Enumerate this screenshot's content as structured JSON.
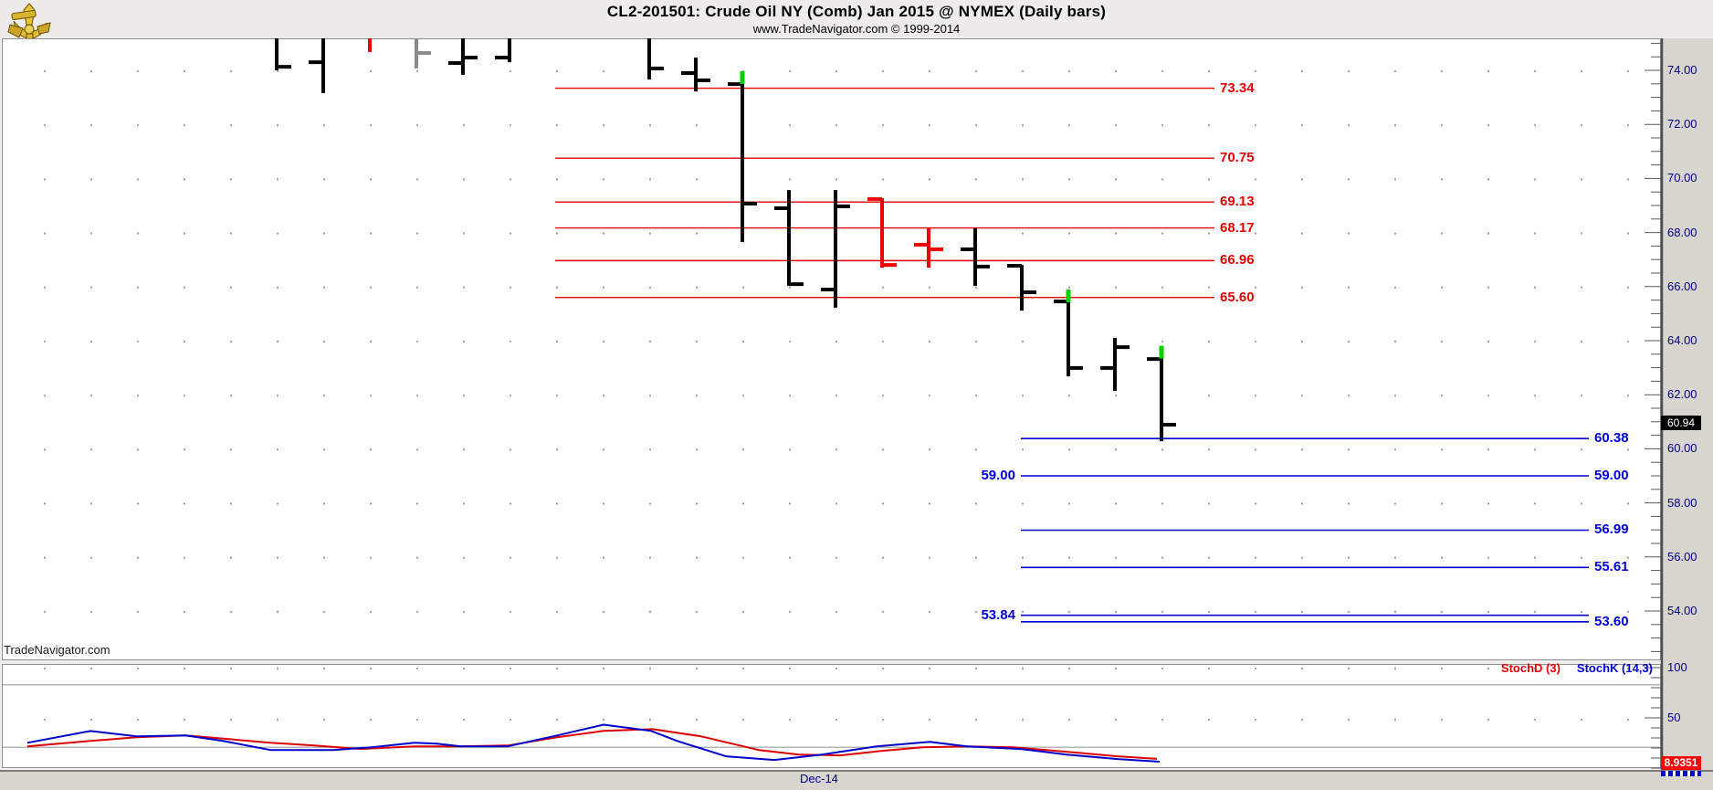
{
  "header": {
    "title": "CL2-201501:  Crude Oil NY (Comb) Jan 2015 @ NYMEX  (Daily bars)",
    "subtitle": "www.TradeNavigator.com © 1999-2014"
  },
  "watermark": "TradeNavigator.com",
  "logo_name": "tradenavigator-sextant-logo",
  "colors": {
    "bar_black": "#000000",
    "bar_red": "#ee0000",
    "bar_gray": "#8a8a8a",
    "marker_green": "#00cf00",
    "level_red": "#e60000",
    "level_blue": "#0000d0",
    "axis_text": "#00008b",
    "stoch_k": "#0000cc",
    "stoch_d": "#dd0000",
    "guide_gray": "#9b9b9b"
  },
  "chart_data": {
    "type": "bar",
    "subtype": "ohlc-daily-bars",
    "symbol": "CL2-201501",
    "title": "Crude Oil NY (Comb) Jan 2015 @ NYMEX (Daily bars)",
    "price_axis": {
      "major_ticks": [
        74,
        72,
        70,
        68,
        66,
        64,
        62,
        60,
        58,
        56,
        54
      ],
      "minor_step": 0.5,
      "current_price": "60.94"
    },
    "date_axis": {
      "labels": [
        {
          "text": "Dec-14"
        }
      ]
    },
    "bars": [
      {
        "slot": 5,
        "high": 75.2,
        "low": 74.0,
        "close_tick": 74.13,
        "color": "black",
        "clipped": true
      },
      {
        "slot": 6,
        "high": 75.2,
        "low": 73.16,
        "open_tick": 74.3,
        "color": "black",
        "clipped": true
      },
      {
        "slot": 7,
        "high": 75.2,
        "low": 74.68,
        "color": "red",
        "clipped": true
      },
      {
        "slot": 8,
        "high": 75.2,
        "low": 74.07,
        "close_tick": 74.64,
        "color": "gray",
        "clipped": true
      },
      {
        "slot": 9,
        "high": 75.2,
        "low": 73.83,
        "open_tick": 74.27,
        "close_tick": 74.47,
        "color": "black",
        "clipped": true
      },
      {
        "slot": 10,
        "high": 75.2,
        "low": 74.3,
        "open_tick": 74.47,
        "color": "black",
        "clipped": true
      },
      {
        "slot": 13,
        "high": 75.2,
        "low": 73.66,
        "close_tick": 74.07,
        "color": "black",
        "clipped": true
      },
      {
        "slot": 14,
        "high": 74.47,
        "low": 73.22,
        "open_tick": 73.9,
        "close_tick": 73.63,
        "color": "black"
      },
      {
        "slot": 15,
        "high": 73.63,
        "low": 67.65,
        "open_tick": 73.49,
        "close_tick": 69.07,
        "color": "black",
        "green_top": true
      },
      {
        "slot": 16,
        "high": 69.57,
        "low": 66.03,
        "open_tick": 68.9,
        "close_tick": 66.09,
        "color": "black"
      },
      {
        "slot": 17,
        "high": 69.57,
        "low": 65.22,
        "open_tick": 65.89,
        "close_tick": 68.97,
        "color": "black"
      },
      {
        "slot": 18,
        "high": 69.27,
        "low": 66.7,
        "open_tick": 69.24,
        "close_tick": 66.8,
        "color": "red"
      },
      {
        "slot": 19,
        "high": 68.16,
        "low": 66.7,
        "open_tick": 67.55,
        "close_tick": 67.38,
        "color": "red"
      },
      {
        "slot": 20,
        "high": 68.16,
        "low": 66.03,
        "open_tick": 67.38,
        "close_tick": 66.74,
        "color": "black"
      },
      {
        "slot": 21,
        "high": 66.8,
        "low": 65.11,
        "open_tick": 66.77,
        "close_tick": 65.79,
        "color": "black"
      },
      {
        "slot": 22,
        "high": 65.55,
        "low": 62.68,
        "open_tick": 65.45,
        "close_tick": 62.99,
        "color": "black",
        "green_top": true
      },
      {
        "slot": 23,
        "high": 64.1,
        "low": 62.14,
        "open_tick": 62.99,
        "close_tick": 63.76,
        "color": "black"
      },
      {
        "slot": 24,
        "high": 63.47,
        "low": 60.28,
        "open_tick": 63.32,
        "close_tick": 60.89,
        "color": "black",
        "green_top": true
      }
    ],
    "red_levels": [
      {
        "price": 73.34,
        "label": "73.34"
      },
      {
        "price": 70.75,
        "label": "70.75"
      },
      {
        "price": 69.13,
        "label": "69.13"
      },
      {
        "price": 68.17,
        "label": "68.17"
      },
      {
        "price": 66.96,
        "label": "66.96"
      },
      {
        "price": 65.6,
        "label": "65.60"
      }
    ],
    "blue_levels": [
      {
        "price": 60.38,
        "label": "60.38",
        "label_left": false,
        "label_right": true
      },
      {
        "price": 59.0,
        "label": "59.00",
        "label_left": true,
        "label_right": true
      },
      {
        "price": 56.99,
        "label": "56.99",
        "label_left": false,
        "label_right": true
      },
      {
        "price": 55.61,
        "label": "55.61",
        "label_left": false,
        "label_right": true
      },
      {
        "price": 53.84,
        "label": "53.84",
        "label_left": true,
        "label_right": false
      },
      {
        "price": 53.6,
        "label": "53.60",
        "label_left": false,
        "label_right": true
      }
    ],
    "stoch": {
      "legend": [
        {
          "label": "StochD (3)",
          "color": "#e60000"
        },
        {
          "label": "StochK (14,3)",
          "color": "#0000d0"
        }
      ],
      "axis_major_ticks": [
        100,
        50
      ],
      "guide_levels": [
        80,
        20
      ],
      "k_points": [
        [
          30,
          24.3
        ],
        [
          99,
          35.6
        ],
        [
          150,
          30.4
        ],
        [
          203,
          31.3
        ],
        [
          245,
          26.0
        ],
        [
          296,
          17.4
        ],
        [
          365,
          17.4
        ],
        [
          407,
          20.0
        ],
        [
          454,
          24.3
        ],
        [
          478,
          23.5
        ],
        [
          505,
          20.9
        ],
        [
          556,
          20.9
        ],
        [
          610,
          31.3
        ],
        [
          661,
          41.7
        ],
        [
          713,
          35.7
        ],
        [
          742,
          26.0
        ],
        [
          795,
          11.3
        ],
        [
          848,
          7.8
        ],
        [
          900,
          13.0
        ],
        [
          960,
          20.9
        ],
        [
          1018,
          25.2
        ],
        [
          1059,
          20.9
        ],
        [
          1118,
          18.3
        ],
        [
          1168,
          13.0
        ],
        [
          1224,
          8.7
        ],
        [
          1270,
          6.1
        ]
      ],
      "d_points": [
        [
          30,
          20.9
        ],
        [
          99,
          26.1
        ],
        [
          150,
          29.6
        ],
        [
          203,
          31.3
        ],
        [
          251,
          27.8
        ],
        [
          296,
          24.3
        ],
        [
          344,
          21.7
        ],
        [
          395,
          18.3
        ],
        [
          454,
          20.9
        ],
        [
          505,
          20.9
        ],
        [
          556,
          21.7
        ],
        [
          610,
          29.6
        ],
        [
          661,
          35.7
        ],
        [
          715,
          37.4
        ],
        [
          768,
          30.4
        ],
        [
          831,
          17.4
        ],
        [
          875,
          13.0
        ],
        [
          920,
          12.2
        ],
        [
          965,
          16.5
        ],
        [
          1010,
          20.0
        ],
        [
          1060,
          20.9
        ],
        [
          1110,
          20.0
        ],
        [
          1168,
          15.7
        ],
        [
          1224,
          11.3
        ],
        [
          1267,
          8.9
        ]
      ],
      "last_value_badge": "8.9351"
    }
  }
}
